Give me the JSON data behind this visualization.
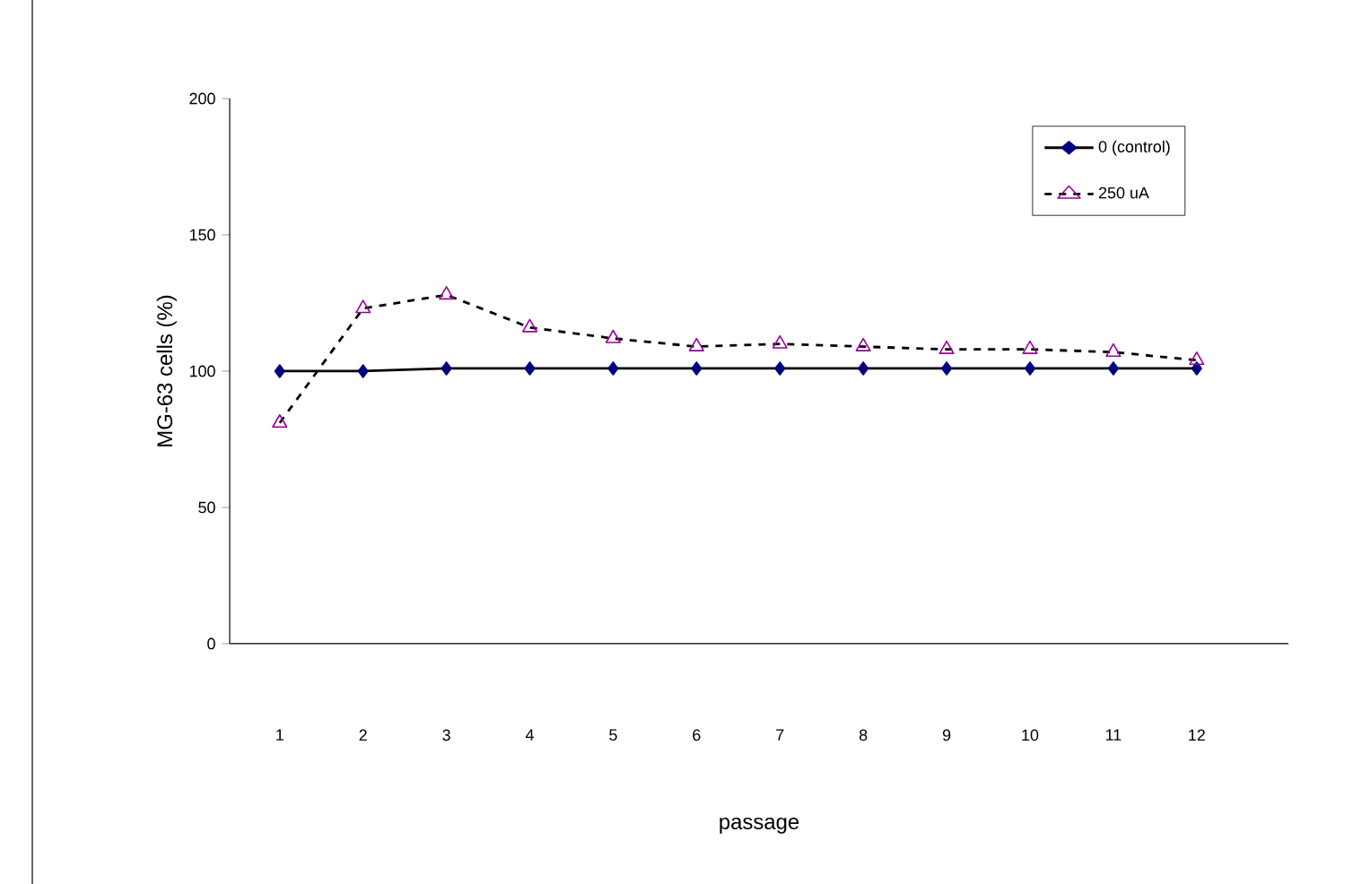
{
  "chart_data": {
    "type": "line",
    "xlabel": "passage",
    "ylabel": "MG-63 cells (%)",
    "categories": [
      "1",
      "2",
      "3",
      "4",
      "5",
      "6",
      "7",
      "8",
      "9",
      "10",
      "11",
      "12"
    ],
    "series": [
      {
        "name": "0 (control)",
        "color": "#000080",
        "marker": "diamond",
        "line_style": "solid",
        "values": [
          100,
          100,
          101,
          101,
          101,
          101,
          101,
          101,
          101,
          101,
          101,
          101
        ]
      },
      {
        "name": "250 uA",
        "color": "#990099",
        "marker": "triangle",
        "line_style": "dashed",
        "values": [
          81,
          123,
          128,
          116,
          112,
          109,
          110,
          109,
          108,
          108,
          107,
          104
        ]
      }
    ],
    "ylim": [
      0,
      200
    ],
    "yticks": [
      0,
      50,
      100,
      150,
      200
    ],
    "grid": false,
    "legend": "top right"
  }
}
